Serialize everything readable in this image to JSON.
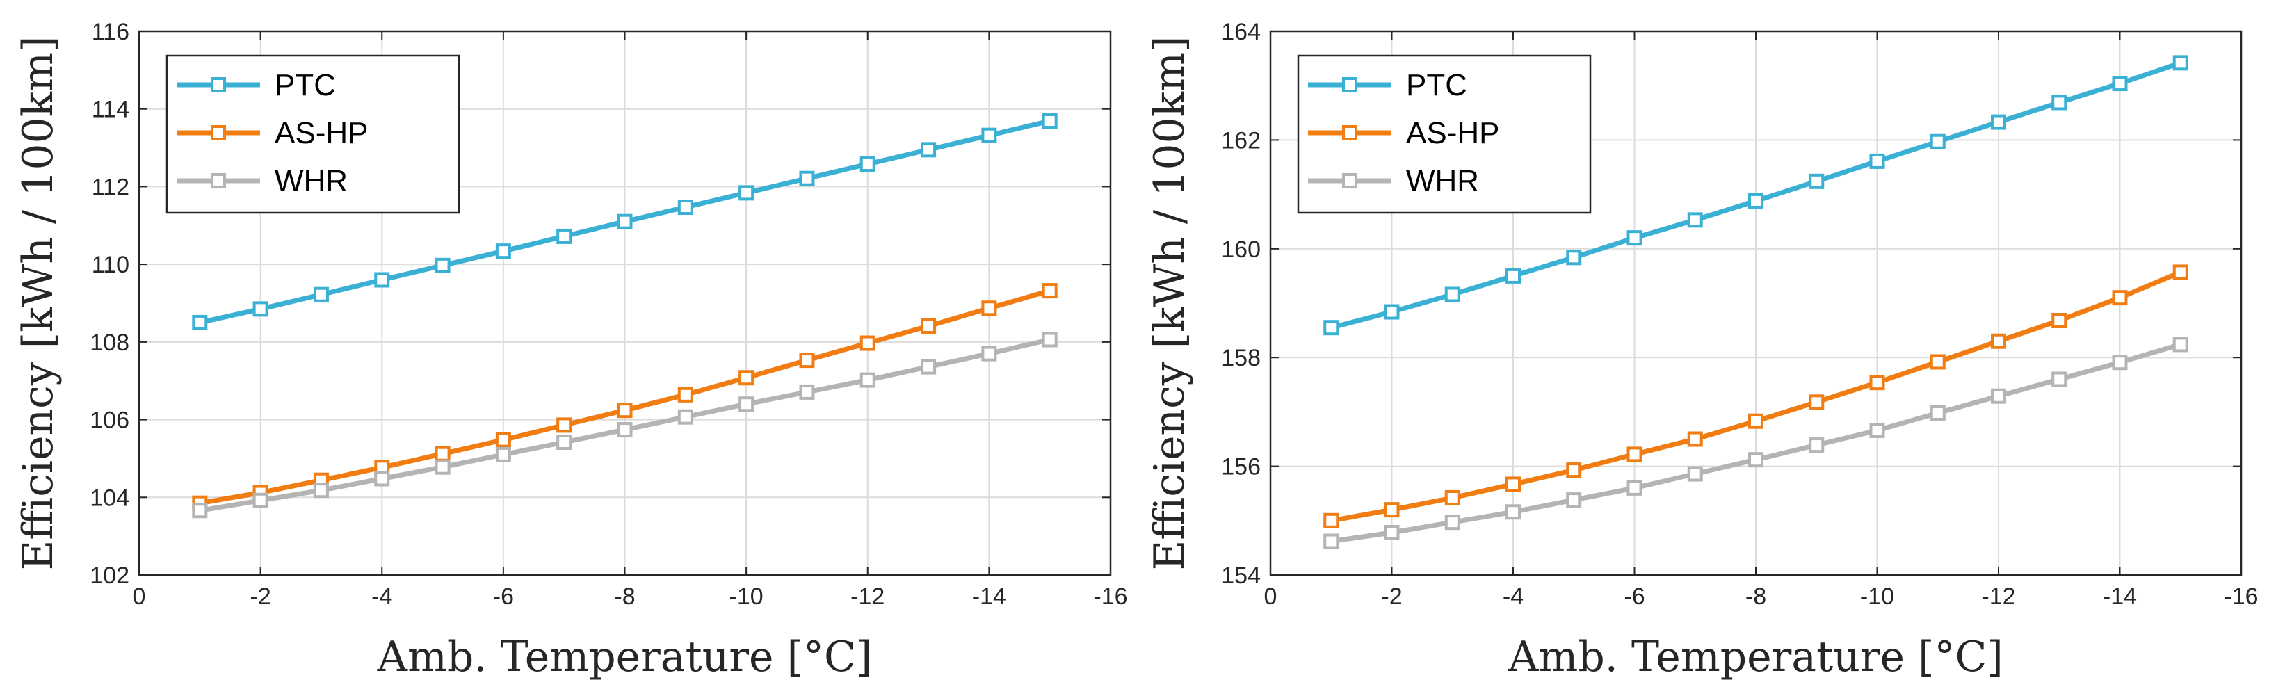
{
  "chart_data": [
    {
      "type": "line",
      "title": "",
      "xlabel": "Amb. Temperature [°C]",
      "ylabel": "Efficiency [kWh / 100km]",
      "xlim": [
        0,
        -16
      ],
      "ylim": [
        102,
        116
      ],
      "x_ticks": [
        "0",
        "-2",
        "-4",
        "-6",
        "-8",
        "-10",
        "-12",
        "-14",
        "-16"
      ],
      "y_ticks": [
        "102",
        "104",
        "106",
        "108",
        "110",
        "112",
        "114",
        "116"
      ],
      "grid": true,
      "legend_position": "top-left",
      "x": [
        -1,
        -2,
        -3,
        -4,
        -5,
        -6,
        -7,
        -8,
        -9,
        -10,
        -11,
        -12,
        -13,
        -14,
        -15
      ],
      "series": [
        {
          "name": "PTC",
          "color": "#3ab0d5",
          "values": [
            108.5,
            108.85,
            109.22,
            109.6,
            109.97,
            110.34,
            110.72,
            111.1,
            111.47,
            111.84,
            112.21,
            112.58,
            112.95,
            113.32,
            113.69
          ]
        },
        {
          "name": "AS-HP",
          "color": "#f07c12",
          "values": [
            103.85,
            104.12,
            104.44,
            104.77,
            105.12,
            105.48,
            105.86,
            106.24,
            106.64,
            107.08,
            107.53,
            107.97,
            108.41,
            108.87,
            109.32
          ]
        },
        {
          "name": "WHR",
          "color": "#b4b4b4",
          "values": [
            103.66,
            103.92,
            104.18,
            104.48,
            104.78,
            105.1,
            105.42,
            105.74,
            106.07,
            106.4,
            106.71,
            107.02,
            107.36,
            107.7,
            108.06
          ]
        }
      ]
    },
    {
      "type": "line",
      "title": "",
      "xlabel": "Amb. Temperature [°C]",
      "ylabel": "Efficiency [kWh / 100km]",
      "xlim": [
        0,
        -16
      ],
      "ylim": [
        154,
        164
      ],
      "x_ticks": [
        "0",
        "-2",
        "-4",
        "-6",
        "-8",
        "-10",
        "-12",
        "-14",
        "-16"
      ],
      "y_ticks": [
        "154",
        "156",
        "158",
        "160",
        "162",
        "164"
      ],
      "grid": true,
      "legend_position": "top-left",
      "x": [
        -1,
        -2,
        -3,
        -4,
        -5,
        -6,
        -7,
        -8,
        -9,
        -10,
        -11,
        -12,
        -13,
        -14,
        -15
      ],
      "series": [
        {
          "name": "PTC",
          "color": "#3ab0d5",
          "values": [
            158.55,
            158.84,
            159.16,
            159.5,
            159.84,
            160.2,
            160.53,
            160.88,
            161.24,
            161.61,
            161.97,
            162.33,
            162.69,
            163.04,
            163.42
          ]
        },
        {
          "name": "AS-HP",
          "color": "#f07c12",
          "values": [
            155.0,
            155.2,
            155.42,
            155.67,
            155.93,
            156.22,
            156.5,
            156.83,
            157.18,
            157.54,
            157.92,
            158.3,
            158.68,
            159.1,
            159.57
          ]
        },
        {
          "name": "WHR",
          "color": "#b4b4b4",
          "values": [
            154.62,
            154.78,
            154.97,
            155.16,
            155.38,
            155.6,
            155.86,
            156.12,
            156.39,
            156.66,
            156.98,
            157.29,
            157.6,
            157.91,
            158.24
          ]
        }
      ]
    }
  ]
}
